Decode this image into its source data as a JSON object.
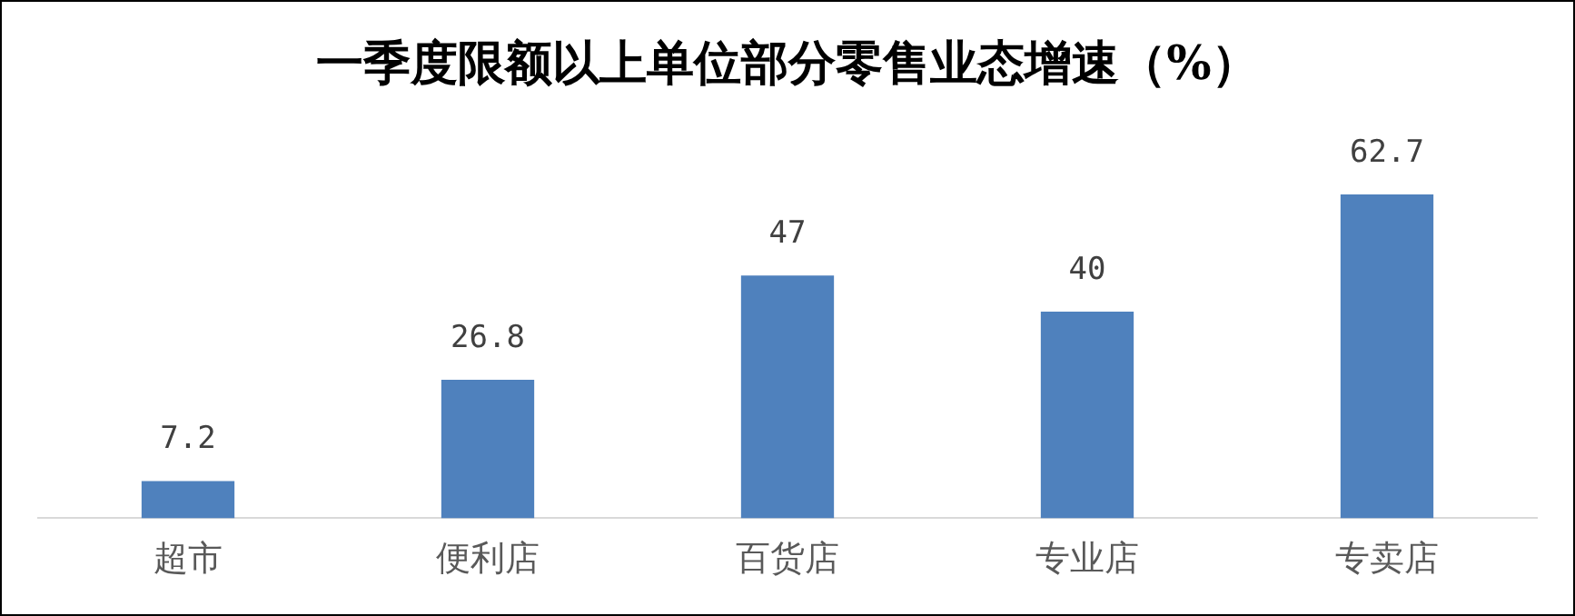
{
  "chart_data": {
    "type": "bar",
    "title": "一季度限额以上单位部分零售业态增速（%）",
    "categories": [
      "超市",
      "便利店",
      "百货店",
      "专业店",
      "专卖店"
    ],
    "values": [
      7.2,
      26.8,
      47,
      40,
      62.7
    ],
    "color": "#4f81bd",
    "data_labels": true,
    "grid": false,
    "legend": false,
    "tick_labels": "x"
  }
}
